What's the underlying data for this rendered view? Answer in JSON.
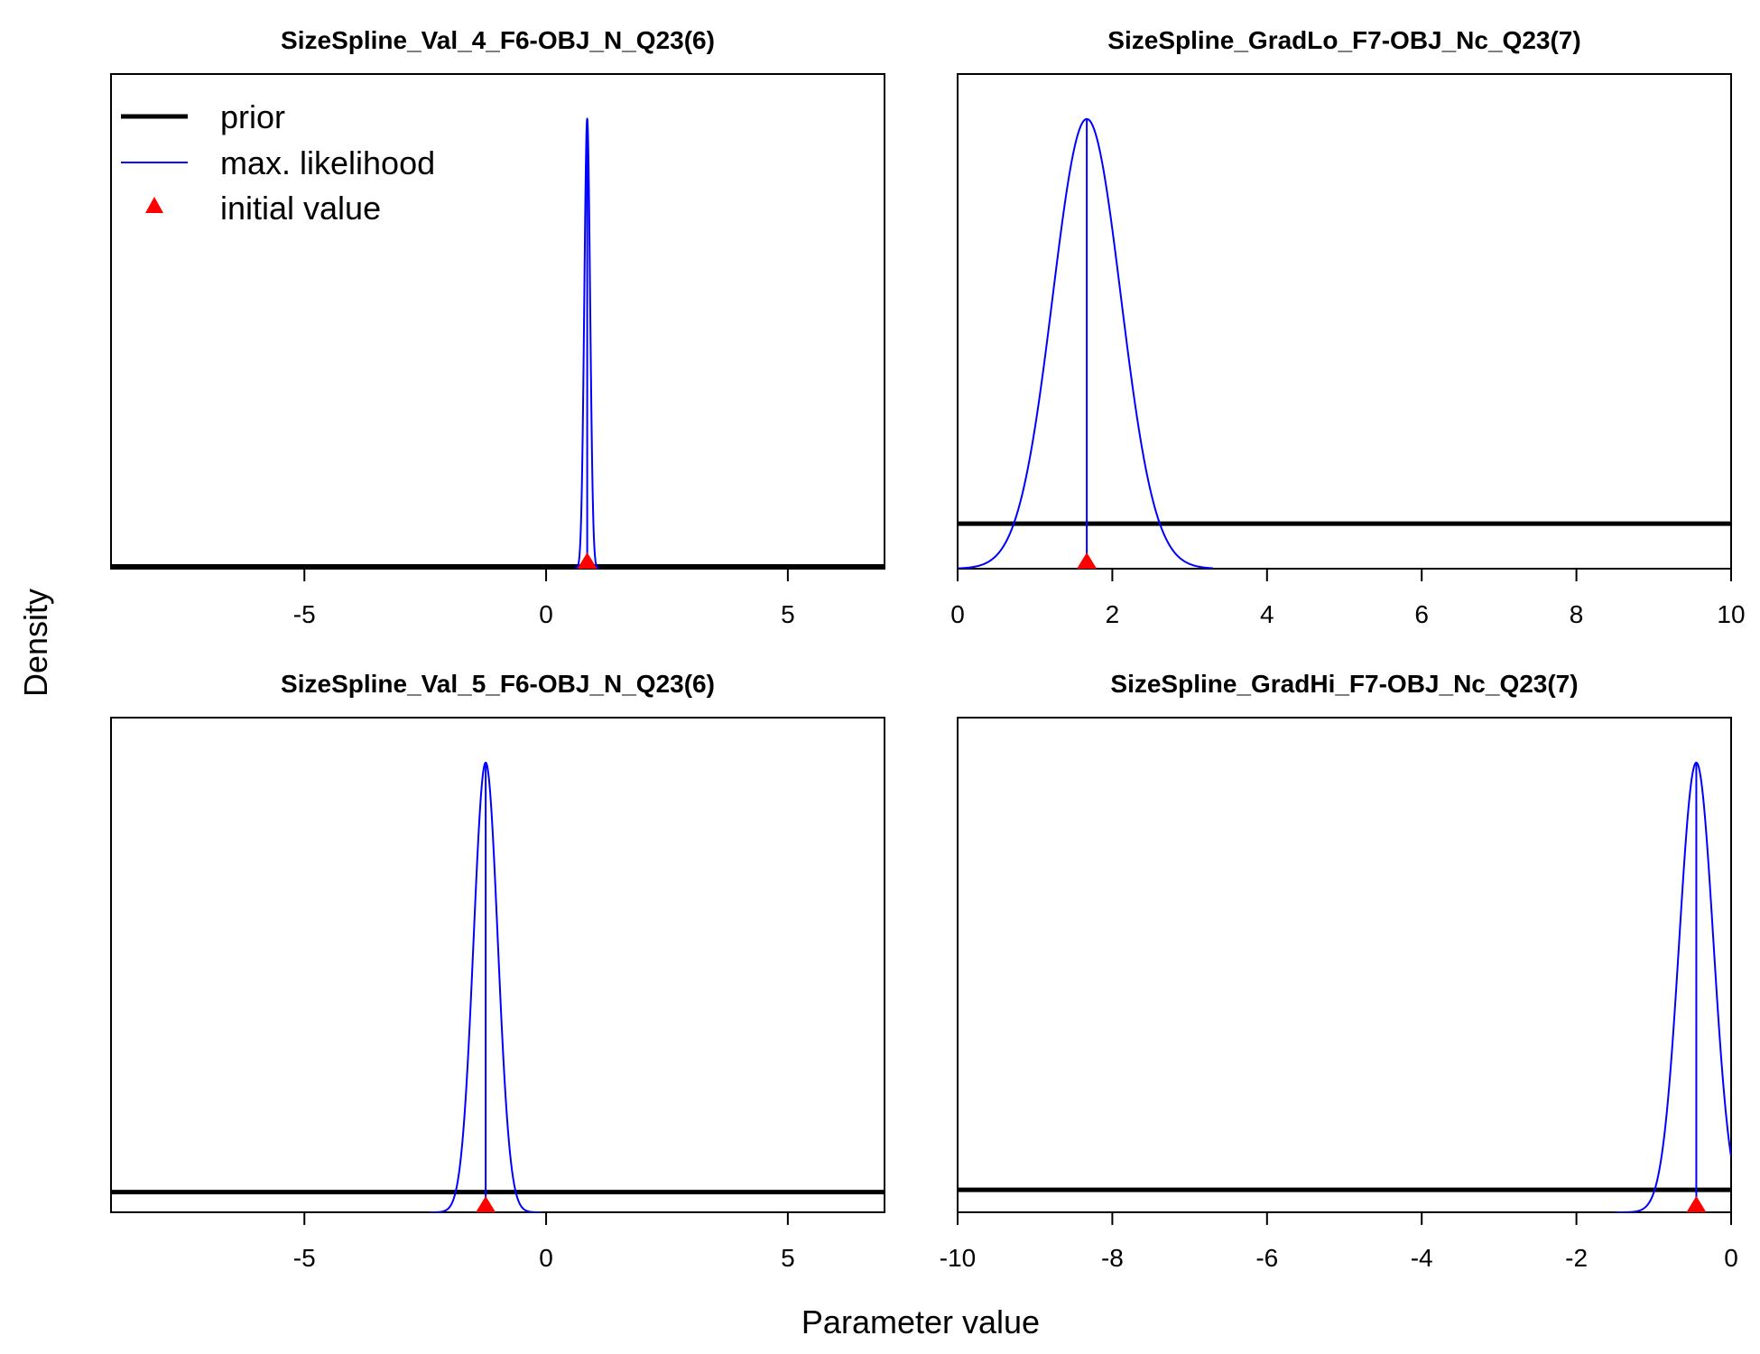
{
  "figure": {
    "ylabel": "Density",
    "xlabel": "Parameter value",
    "legend": {
      "position": "top-left",
      "items": [
        {
          "label": "prior",
          "style": "thick-black-line"
        },
        {
          "label": "max. likelihood",
          "style": "thin-blue-line"
        },
        {
          "label": "initial value",
          "style": "red-triangle"
        }
      ]
    }
  },
  "colors": {
    "prior": "#000000",
    "max_likelihood": "#0000ff",
    "initial_value": "#ff0000"
  },
  "chart_data": [
    {
      "type": "line",
      "title": "SizeSpline_Val_4_F6-OBJ_N_Q23(6)",
      "xlim": [
        -9,
        7
      ],
      "xticks": [
        -5,
        0,
        5
      ],
      "xtick_labels": [
        "-5",
        "0",
        "5"
      ],
      "ylim": [
        0,
        1.1
      ],
      "prior_level": 0.005,
      "ml_mean": 0.85,
      "ml_sd": 0.06,
      "ml_peak": 1.0,
      "ml_range": [
        0.6,
        1.1
      ],
      "initial_value": 0.85
    },
    {
      "type": "line",
      "title": "SizeSpline_GradLo_F7-OBJ_Nc_Q23(7)",
      "xlim": [
        0,
        10
      ],
      "xticks": [
        0,
        2,
        4,
        6,
        8,
        10
      ],
      "xtick_labels": [
        "0",
        "2",
        "4",
        "6",
        "8",
        "10"
      ],
      "ylim": [
        0,
        1.1
      ],
      "prior_level": 0.1,
      "ml_mean": 1.67,
      "ml_sd": 0.44,
      "ml_peak": 1.0,
      "ml_range": [
        0,
        3.3
      ],
      "initial_value": 1.67
    },
    {
      "type": "line",
      "title": "SizeSpline_Val_5_F6-OBJ_N_Q23(6)",
      "xlim": [
        -9,
        7
      ],
      "xticks": [
        -5,
        0,
        5
      ],
      "xtick_labels": [
        "-5",
        "0",
        "5"
      ],
      "ylim": [
        0,
        1.1
      ],
      "prior_level": 0.045,
      "ml_mean": -1.25,
      "ml_sd": 0.25,
      "ml_peak": 1.0,
      "ml_range": [
        -2.4,
        -0.1
      ],
      "initial_value": -1.25
    },
    {
      "type": "line",
      "title": "SizeSpline_GradHi_F7-OBJ_Nc_Q23(7)",
      "xlim": [
        -10,
        0
      ],
      "xticks": [
        -10,
        -8,
        -6,
        -4,
        -2,
        0
      ],
      "xtick_labels": [
        "-10",
        "-8",
        "-6",
        "-4",
        "-2",
        "0"
      ],
      "ylim": [
        0,
        1.1
      ],
      "prior_level": 0.05,
      "ml_mean": -0.45,
      "ml_sd": 0.22,
      "ml_peak": 1.0,
      "ml_range": [
        -1.5,
        0
      ],
      "initial_value": -0.45
    }
  ]
}
